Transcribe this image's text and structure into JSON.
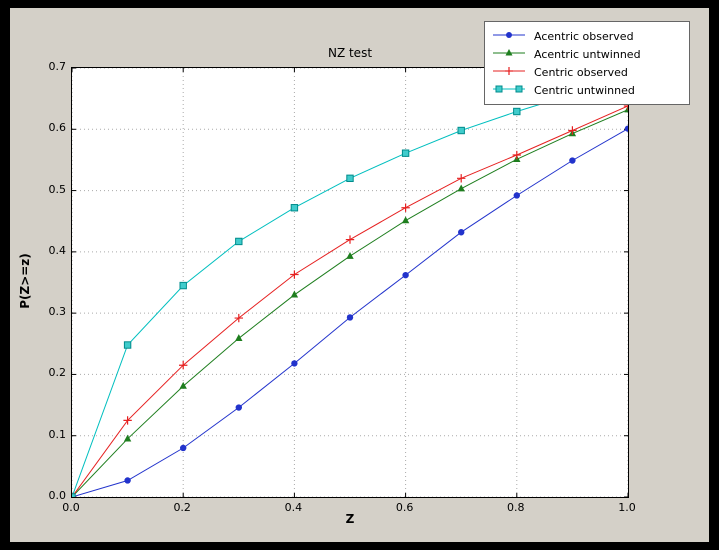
{
  "colors": {
    "outer_bg": "#000000",
    "figure_bg": "#d4d0c8",
    "plot_bg": "#ffffff",
    "axes_border": "#000000",
    "grid": "#aaaaaa",
    "legend_border": "#666666"
  },
  "chart_data": {
    "type": "line",
    "title": "NZ test",
    "xlabel": "Z",
    "ylabel": "P(Z>=z)",
    "xlim": [
      0.0,
      1.0
    ],
    "ylim": [
      0.0,
      0.7
    ],
    "xticks": [
      0.0,
      0.2,
      0.4,
      0.6,
      0.8,
      1.0
    ],
    "xtick_labels": [
      "0.0",
      "0.2",
      "0.4",
      "0.6",
      "0.8",
      "1.0"
    ],
    "yticks": [
      0.0,
      0.1,
      0.2,
      0.3,
      0.4,
      0.5,
      0.6,
      0.7
    ],
    "ytick_labels": [
      "0.0",
      "0.1",
      "0.2",
      "0.3",
      "0.4",
      "0.5",
      "0.6",
      "0.7"
    ],
    "grid": true,
    "grid_style": "dotted",
    "legend_position": "upper right",
    "x": [
      0.0,
      0.1,
      0.2,
      0.3,
      0.4,
      0.5,
      0.6,
      0.7,
      0.8,
      0.9,
      1.0
    ],
    "series": [
      {
        "name": "Acentric observed",
        "color": "#2233cc",
        "marker": "circle",
        "values": [
          0.0,
          0.027,
          0.08,
          0.146,
          0.218,
          0.293,
          0.362,
          0.432,
          0.492,
          0.549,
          0.601
        ]
      },
      {
        "name": "Acentric untwinned",
        "color": "#1e7e1e",
        "marker": "triangle",
        "values": [
          0.0,
          0.095,
          0.181,
          0.259,
          0.33,
          0.393,
          0.451,
          0.503,
          0.551,
          0.593,
          0.632
        ]
      },
      {
        "name": "Centric observed",
        "color": "#e62020",
        "marker": "plus",
        "values": [
          0.0,
          0.125,
          0.215,
          0.292,
          0.363,
          0.42,
          0.472,
          0.52,
          0.558,
          0.598,
          0.638
        ]
      },
      {
        "name": "Centric untwinned",
        "color": "#00bfbf",
        "marker": "square",
        "marker_fill": "#40cccc",
        "marker_edge": "#008b8b",
        "values": [
          0.0,
          0.248,
          0.345,
          0.417,
          0.472,
          0.52,
          0.561,
          0.598,
          0.629,
          0.657,
          0.683
        ]
      }
    ]
  }
}
